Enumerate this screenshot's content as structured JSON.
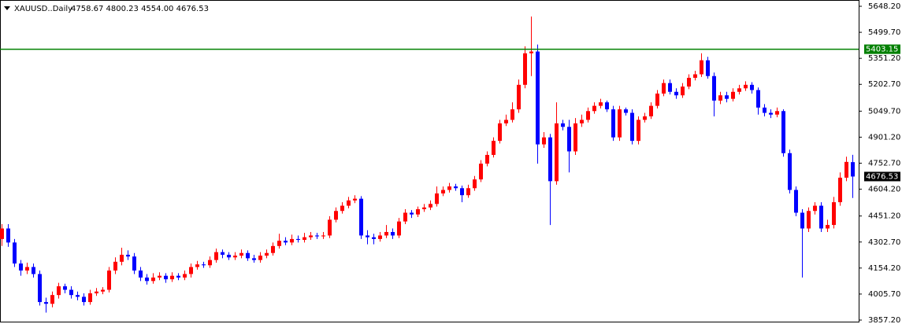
{
  "chart_data": {
    "type": "candlestick",
    "title": "XAUUSD..Daily",
    "subtitle": "4758.67 4800.23 4554.00 4676.53",
    "up_color": "#ff0000",
    "down_color": "#0000ff",
    "ylim": [
      3857.2,
      5648.2
    ],
    "yticks": [
      {
        "value": 3857.2,
        "label": "3857.20"
      },
      {
        "value": 4005.7,
        "label": "4005.70"
      },
      {
        "value": 4154.2,
        "label": "4154.20"
      },
      {
        "value": 4302.7,
        "label": "4302.70"
      },
      {
        "value": 4451.2,
        "label": "4451.20"
      },
      {
        "value": 4604.2,
        "label": "4604.20"
      },
      {
        "value": 4752.7,
        "label": "4752.70"
      },
      {
        "value": 4901.2,
        "label": "4901.20"
      },
      {
        "value": 5049.7,
        "label": "5049.70"
      },
      {
        "value": 5202.7,
        "label": "5202.70"
      },
      {
        "value": 5351.2,
        "label": "5351.20"
      },
      {
        "value": 5499.7,
        "label": "5499.70"
      },
      {
        "value": 5648.2,
        "label": "5648.20"
      }
    ],
    "level": {
      "value": 5403.15,
      "label": "5403.15",
      "color": "#008000"
    },
    "last_label": "4676.53",
    "open": [
      4320,
      4380,
      4300,
      4180,
      4140,
      4160,
      4120,
      3960,
      3950,
      4000,
      4050,
      4030,
      4000,
      3990,
      3960,
      4010,
      4020,
      4030,
      4140,
      4190,
      4230,
      4220,
      4140,
      4100,
      4080,
      4100,
      4110,
      4090,
      4110,
      4100,
      4120,
      4160,
      4175,
      4170,
      4200,
      4245,
      4230,
      4215,
      4225,
      4240,
      4210,
      4200,
      4225,
      4240,
      4280,
      4310,
      4300,
      4320,
      4315,
      4330,
      4340,
      4335,
      4340,
      4430,
      4480,
      4510,
      4540,
      4550,
      4340,
      4330,
      4320,
      4340,
      4360,
      4340,
      4420,
      4470,
      4460,
      4490,
      4500,
      4520,
      4580,
      4600,
      4620,
      4610,
      4570,
      4610,
      4660,
      4750,
      4800,
      4880,
      4980,
      5000,
      5060,
      5200,
      5380,
      5390,
      4860,
      4900,
      4650,
      4980,
      4960,
      4820,
      4980,
      5000,
      5050,
      5080,
      5100,
      5060,
      4900,
      5060,
      5040,
      4880,
      5000,
      5020,
      5080,
      5150,
      5210,
      5160,
      5140,
      5190,
      5240,
      5260,
      5340,
      5250,
      5110,
      5140,
      5120,
      5160,
      5180,
      5200,
      5170,
      5070,
      5040,
      5030,
      5050,
      4810,
      4600,
      4470,
      4380,
      4480,
      4510,
      4380,
      4400,
      4530,
      4670,
      4758.67
    ],
    "high": [
      4405,
      4405,
      4320,
      4200,
      4185,
      4180,
      4140,
      3985,
      4020,
      4070,
      4065,
      4050,
      4020,
      4010,
      4030,
      4040,
      4045,
      4160,
      4215,
      4270,
      4255,
      4240,
      4160,
      4120,
      4125,
      4130,
      4125,
      4130,
      4125,
      4140,
      4180,
      4195,
      4190,
      4220,
      4265,
      4260,
      4245,
      4245,
      4260,
      4255,
      4230,
      4245,
      4260,
      4300,
      4350,
      4330,
      4345,
      4340,
      4355,
      4360,
      4355,
      4360,
      4450,
      4500,
      4530,
      4560,
      4570,
      4565,
      4370,
      4350,
      4360,
      4400,
      4380,
      4440,
      4490,
      4485,
      4505,
      4520,
      4540,
      4620,
      4620,
      4640,
      4635,
      4625,
      4630,
      4680,
      4770,
      4820,
      4900,
      5000,
      5030,
      5100,
      5230,
      5420,
      5590,
      5430,
      4930,
      4920,
      5100,
      5000,
      5000,
      5010,
      5030,
      5070,
      5100,
      5120,
      5110,
      5080,
      5080,
      5070,
      5060,
      5020,
      5040,
      5100,
      5170,
      5230,
      5230,
      5180,
      5210,
      5260,
      5280,
      5380,
      5360,
      5270,
      5160,
      5160,
      5180,
      5200,
      5220,
      5215,
      5185,
      5090,
      5060,
      5070,
      5060,
      4830,
      4620,
      4490,
      4500,
      4530,
      4530,
      4430,
      4560,
      4700,
      4790,
      4800.23
    ],
    "low": [
      4280,
      4275,
      4160,
      4110,
      4120,
      4100,
      3940,
      3900,
      3930,
      3980,
      4010,
      3980,
      3970,
      3940,
      3945,
      3995,
      4005,
      4015,
      4120,
      4170,
      4200,
      4120,
      4080,
      4060,
      4065,
      4085,
      4070,
      4075,
      4085,
      4085,
      4100,
      4145,
      4155,
      4155,
      4185,
      4210,
      4200,
      4200,
      4210,
      4195,
      4185,
      4185,
      4210,
      4225,
      4265,
      4285,
      4285,
      4300,
      4300,
      4315,
      4320,
      4320,
      4325,
      4415,
      4465,
      4495,
      4525,
      4320,
      4290,
      4290,
      4305,
      4325,
      4320,
      4325,
      4405,
      4440,
      4445,
      4475,
      4485,
      4505,
      4565,
      4585,
      4595,
      4530,
      4555,
      4595,
      4645,
      4735,
      4785,
      4865,
      4965,
      4985,
      5040,
      5180,
      5250,
      4750,
      4840,
      4400,
      4630,
      4940,
      4700,
      4800,
      4960,
      4985,
      5035,
      5065,
      5045,
      4880,
      4880,
      5025,
      4860,
      4860,
      4985,
      5005,
      5065,
      5135,
      5145,
      5120,
      5125,
      5175,
      5225,
      5245,
      5235,
      5020,
      5090,
      5100,
      5105,
      5145,
      5165,
      5150,
      5030,
      5020,
      5010,
      5015,
      4790,
      4580,
      4450,
      4100,
      4360,
      4460,
      4360,
      4360,
      4380,
      4510,
      4650,
      4554
    ],
    "close": [
      4380,
      4300,
      4180,
      4140,
      4160,
      4120,
      3960,
      3950,
      4000,
      4050,
      4030,
      4000,
      3990,
      3960,
      4010,
      4020,
      4030,
      4140,
      4190,
      4230,
      4220,
      4140,
      4100,
      4080,
      4100,
      4110,
      4090,
      4110,
      4100,
      4120,
      4160,
      4175,
      4170,
      4200,
      4245,
      4230,
      4215,
      4225,
      4240,
      4210,
      4200,
      4225,
      4240,
      4280,
      4310,
      4300,
      4320,
      4315,
      4330,
      4340,
      4335,
      4340,
      4430,
      4480,
      4510,
      4540,
      4550,
      4340,
      4330,
      4320,
      4340,
      4360,
      4340,
      4420,
      4470,
      4460,
      4490,
      4500,
      4520,
      4580,
      4600,
      4620,
      4610,
      4570,
      4610,
      4660,
      4750,
      4800,
      4880,
      4980,
      5000,
      5060,
      5200,
      5380,
      5390,
      4860,
      4900,
      4650,
      4980,
      4960,
      4820,
      4980,
      5000,
      5050,
      5080,
      5100,
      5060,
      4900,
      5060,
      5040,
      4880,
      5000,
      5020,
      5080,
      5150,
      5210,
      5160,
      5140,
      5190,
      5240,
      5260,
      5340,
      5250,
      5110,
      5140,
      5120,
      5160,
      5180,
      5200,
      5170,
      5070,
      5040,
      5030,
      5050,
      4810,
      4600,
      4470,
      4380,
      4480,
      4510,
      4380,
      4400,
      4530,
      4670,
      4760,
      4676.53
    ]
  }
}
